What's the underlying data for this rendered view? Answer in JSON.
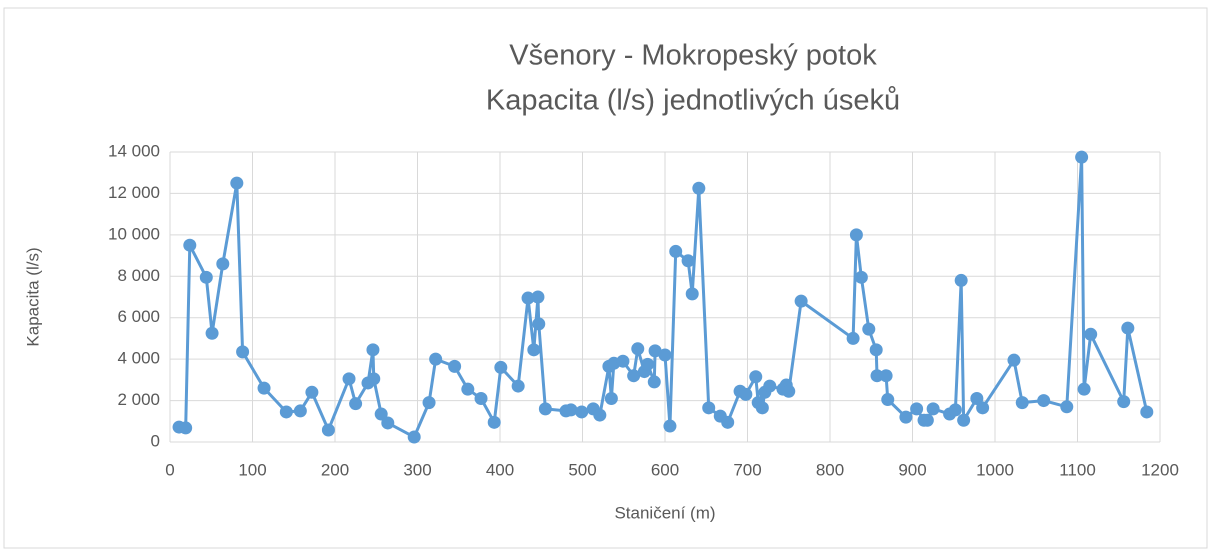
{
  "chart_data": {
    "type": "line",
    "title": "Všenory - Mokropeský potok",
    "subtitle": "Kapacita (l/s) jednotlivých úseků",
    "x_label": "Staničení (m)",
    "y_label": "Kapacita (l/s)",
    "xlim": [
      0,
      1200
    ],
    "xticks": [
      0,
      100,
      200,
      300,
      400,
      500,
      600,
      700,
      800,
      900,
      1000,
      1100,
      1200
    ],
    "ylim": [
      0,
      14000
    ],
    "yticks": [
      0,
      {
        "value": 2000,
        "label": "2 000"
      },
      {
        "value": 4000,
        "label": "4 000"
      },
      {
        "value": 6000,
        "label": "6 000"
      },
      {
        "value": 8000,
        "label": "8 000"
      },
      {
        "value": 10000,
        "label": "10 000"
      },
      {
        "value": 12000,
        "label": "12 000"
      },
      {
        "value": 14000,
        "label": "14 000"
      }
    ],
    "grid": true,
    "x": [
      11,
      19,
      24,
      44,
      51,
      64,
      81,
      88,
      114,
      141,
      158,
      172,
      192,
      217,
      225,
      240,
      246,
      247,
      256,
      264,
      296,
      314,
      322,
      345,
      361,
      377,
      393,
      401,
      422,
      434,
      441,
      446,
      447,
      455,
      480,
      486,
      499,
      513,
      521,
      532,
      535,
      538,
      549,
      562,
      567,
      575,
      579,
      587,
      588,
      600,
      606,
      613,
      628,
      633,
      641,
      653,
      667,
      676,
      691,
      698,
      710,
      713,
      718,
      721,
      727,
      743,
      747,
      750,
      765,
      828,
      832,
      838,
      847,
      856,
      857,
      868,
      870,
      892,
      905,
      914,
      918,
      925,
      945,
      952,
      959,
      962,
      978,
      985,
      1023,
      1033,
      1059,
      1087,
      1105,
      1108,
      1116,
      1156,
      1161,
      1184
    ],
    "series": [
      {
        "name": "Kapacita",
        "color": "#5b9bd5",
        "values": [
          720,
          680,
          9500,
          7950,
          5250,
          8600,
          12500,
          4350,
          2600,
          1450,
          1500,
          2400,
          580,
          3050,
          1850,
          2850,
          4450,
          3050,
          1350,
          920,
          240,
          1900,
          4000,
          3650,
          2550,
          2100,
          950,
          3600,
          2700,
          6950,
          4450,
          7000,
          5700,
          1600,
          1500,
          1550,
          1450,
          1600,
          1300,
          3650,
          2100,
          3800,
          3900,
          3200,
          4500,
          3400,
          3750,
          2900,
          4400,
          4200,
          770,
          9200,
          8750,
          7150,
          12250,
          1650,
          1250,
          950,
          2450,
          2300,
          3150,
          1900,
          1650,
          2400,
          2700,
          2550,
          2750,
          2450,
          6800,
          5000,
          10000,
          7950,
          5450,
          4450,
          3200,
          3200,
          2050,
          1200,
          1600,
          1050,
          1050,
          1600,
          1350,
          1550,
          7800,
          1050,
          2100,
          1650,
          3950,
          1900,
          2000,
          1700,
          13750,
          2550,
          5200,
          1950,
          5500,
          1450
        ]
      }
    ]
  }
}
